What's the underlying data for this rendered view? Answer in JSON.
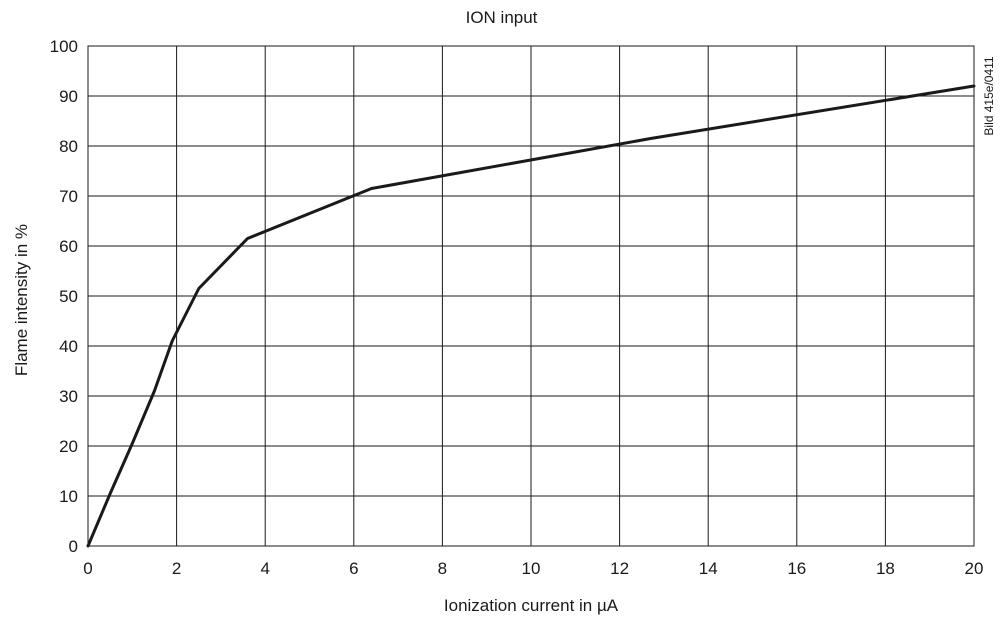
{
  "chart_data": {
    "type": "line",
    "title": "ION input",
    "xlabel": "Ionization current in µA",
    "ylabel": "Flame intensity in %",
    "figure_id": "Bild 415e/0411",
    "xlim": [
      0,
      20
    ],
    "ylim": [
      0,
      100
    ],
    "xticks": [
      0,
      2,
      4,
      6,
      8,
      10,
      12,
      14,
      16,
      18,
      20
    ],
    "yticks": [
      0,
      10,
      20,
      30,
      40,
      50,
      60,
      70,
      80,
      90,
      100
    ],
    "grid": true,
    "series": [
      {
        "color": "#1a1a1a",
        "points": [
          [
            0,
            0
          ],
          [
            0.5,
            10.5
          ],
          [
            1.0,
            20.5
          ],
          [
            1.5,
            31
          ],
          [
            1.9,
            41
          ],
          [
            2.5,
            51.5
          ],
          [
            3.6,
            61.5
          ],
          [
            6.4,
            71.5
          ],
          [
            12.7,
            81.5
          ],
          [
            20,
            92
          ]
        ]
      }
    ]
  }
}
